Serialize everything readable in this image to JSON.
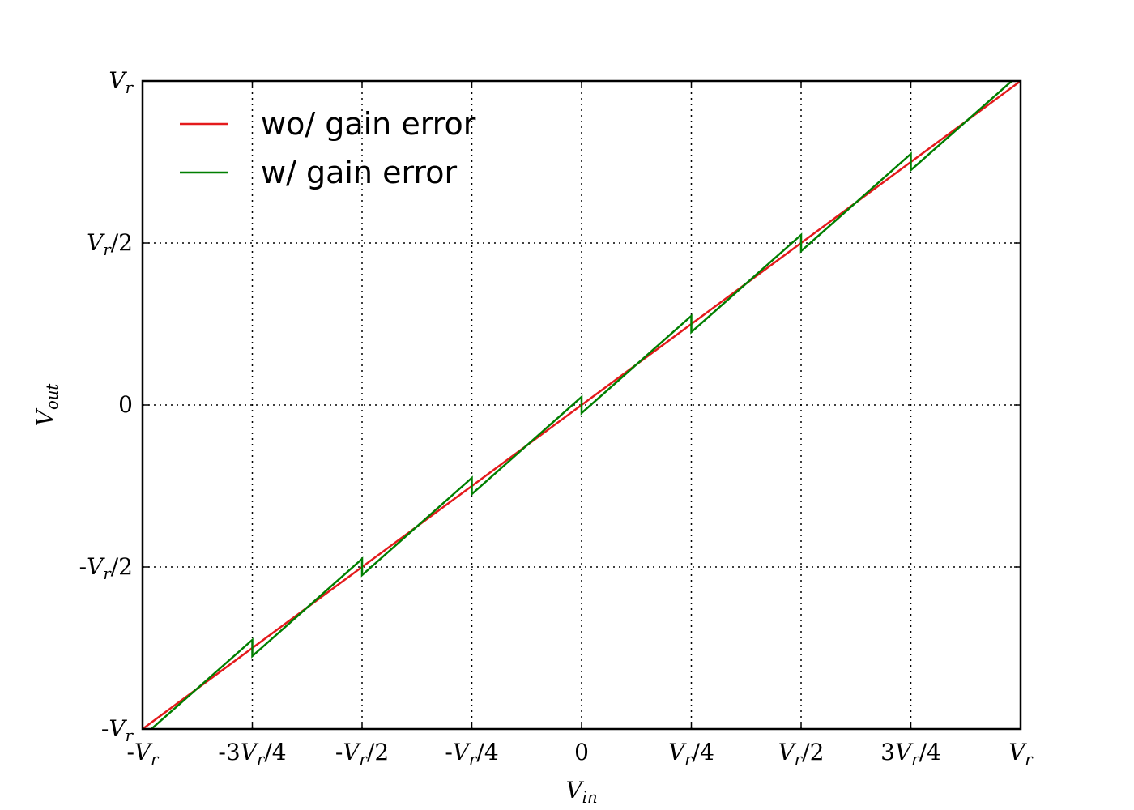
{
  "chart_data": {
    "type": "line",
    "xlabel": "V_in",
    "ylabel": "V_out",
    "xlim": [
      -1,
      1
    ],
    "ylim": [
      -1,
      1
    ],
    "grid": true,
    "legend_position": "top-left",
    "x_ticks": [
      {
        "value": -1,
        "label": "-V_r"
      },
      {
        "value": -0.75,
        "label": "-3V_r/4"
      },
      {
        "value": -0.5,
        "label": "-V_r/2"
      },
      {
        "value": -0.25,
        "label": "-V_r/4"
      },
      {
        "value": 0,
        "label": "0"
      },
      {
        "value": 0.25,
        "label": "V_r/4"
      },
      {
        "value": 0.5,
        "label": "V_r/2"
      },
      {
        "value": 0.75,
        "label": "3V_r/4"
      },
      {
        "value": 1,
        "label": "V_r"
      }
    ],
    "y_ticks": [
      {
        "value": -1,
        "label": "-V_r"
      },
      {
        "value": -0.5,
        "label": "-V_r/2"
      },
      {
        "value": 0,
        "label": "0"
      },
      {
        "value": 0.5,
        "label": "V_r/2"
      },
      {
        "value": 1,
        "label": "V_r"
      }
    ],
    "series": [
      {
        "name": "wo/ gain error",
        "color": "#e41a1c",
        "points": [
          [
            -1,
            -1
          ],
          [
            1,
            1
          ]
        ]
      },
      {
        "name": "w/ gain error",
        "color": "#007f00",
        "points": [
          [
            -0.98,
            -1.0
          ],
          [
            -0.75,
            -0.725
          ],
          [
            -0.75,
            -0.775
          ],
          [
            -0.5,
            -0.475
          ],
          [
            -0.5,
            -0.525
          ],
          [
            -0.25,
            -0.225
          ],
          [
            -0.25,
            -0.275
          ],
          [
            0,
            0.025
          ],
          [
            0,
            -0.025
          ],
          [
            0.25,
            0.275
          ],
          [
            0.25,
            0.225
          ],
          [
            0.5,
            0.525
          ],
          [
            0.5,
            0.475
          ],
          [
            0.75,
            0.775
          ],
          [
            0.75,
            0.725
          ],
          [
            0.98,
            1.0
          ]
        ]
      }
    ]
  }
}
